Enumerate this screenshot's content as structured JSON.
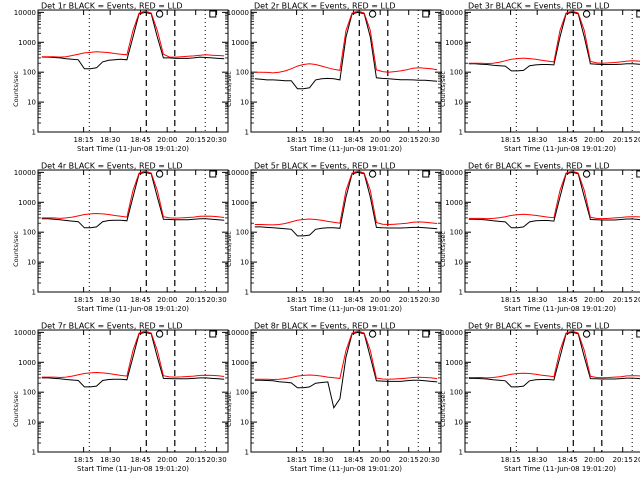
{
  "chart_data": {
    "type": "line",
    "layout": "3x3 grid",
    "y_scale": "log",
    "ylim": [
      1,
      12000
    ],
    "ytick_labels": [
      "1",
      "10",
      "100",
      "1000",
      "10000"
    ],
    "xtick_labels": [
      "18:15",
      "18:30",
      "18:45",
      "20:00",
      "20:15",
      "20:30"
    ],
    "xlabel": "Start Time (11-Jun-08 19:01:20)",
    "ylabel": "Counts/sec",
    "panels": [
      {
        "title": "Det 1r BLACK = Events, RED = LLD",
        "series": [
          {
            "name": "BLACK = Events",
            "color": "#000000",
            "values": [
              320,
              320,
              310,
              300,
              280,
              270,
              260,
              130,
              130,
              140,
              220,
              250,
              260,
              270,
              260,
              1500,
              9000,
              10000,
              9000,
              1500,
              300,
              300,
              290,
              290,
              290,
              300,
              320,
              310,
              300,
              290,
              280
            ]
          },
          {
            "name": "RED = LLD",
            "color": "#ff0000",
            "values": [
              330,
              330,
              330,
              320,
              330,
              360,
              400,
              440,
              460,
              480,
              470,
              450,
              420,
              400,
              380,
              2500,
              9500,
              11000,
              9500,
              2500,
              400,
              320,
              320,
              330,
              340,
              350,
              370,
              380,
              370,
              360,
              350
            ]
          }
        ]
      },
      {
        "title": "Det 2r BLACK = Events, RED = LLD",
        "series": [
          {
            "name": "BLACK = Events",
            "color": "#000000",
            "values": [
              60,
              58,
              55,
              55,
              54,
              52,
              52,
              28,
              28,
              30,
              55,
              60,
              62,
              60,
              55,
              1500,
              9000,
              10000,
              9000,
              1500,
              65,
              62,
              60,
              58,
              56,
              56,
              55,
              54,
              54,
              52,
              50
            ]
          },
          {
            "name": "RED = LLD",
            "color": "#ff0000",
            "values": [
              100,
              100,
              98,
              95,
              100,
              110,
              130,
              160,
              180,
              190,
              180,
              160,
              140,
              125,
              115,
              2500,
              9500,
              11000,
              9500,
              2500,
              120,
              105,
              100,
              105,
              110,
              120,
              135,
              140,
              135,
              130,
              120
            ]
          }
        ]
      },
      {
        "title": "Det 3r BLACK = Events, RED = LLD",
        "series": [
          {
            "name": "BLACK = Events",
            "color": "#000000",
            "values": [
              190,
              190,
              185,
              180,
              170,
              165,
              160,
              110,
              110,
              115,
              165,
              175,
              180,
              180,
              175,
              1500,
              9000,
              10000,
              9000,
              1500,
              190,
              185,
              180,
              180,
              180,
              185,
              190,
              190,
              185,
              180,
              175
            ]
          },
          {
            "name": "RED = LLD",
            "color": "#ff0000",
            "values": [
              200,
              200,
              200,
              195,
              200,
              215,
              240,
              270,
              285,
              295,
              285,
              270,
              250,
              235,
              220,
              2500,
              9500,
              11000,
              9500,
              2500,
              230,
              205,
              200,
              205,
              210,
              220,
              235,
              240,
              235,
              225,
              215
            ]
          }
        ]
      },
      {
        "title": "Det 4r BLACK = Events, RED = LLD",
        "series": [
          {
            "name": "BLACK = Events",
            "color": "#000000",
            "values": [
              280,
              280,
              270,
              260,
              245,
              235,
              225,
              140,
              140,
              150,
              225,
              245,
              250,
              250,
              240,
              1500,
              9000,
              10000,
              9000,
              1500,
              270,
              265,
              260,
              260,
              260,
              270,
              280,
              280,
              270,
              260,
              250
            ]
          },
          {
            "name": "RED = LLD",
            "color": "#ff0000",
            "values": [
              300,
              300,
              300,
              290,
              300,
              320,
              350,
              390,
              410,
              420,
              410,
              390,
              360,
              340,
              320,
              2500,
              9500,
              11000,
              9500,
              2500,
              330,
              300,
              295,
              300,
              310,
              320,
              340,
              345,
              340,
              330,
              310
            ]
          }
        ]
      },
      {
        "title": "Det 5r BLACK = Events, RED = LLD",
        "series": [
          {
            "name": "BLACK = Events",
            "color": "#000000",
            "values": [
              150,
              150,
              145,
              140,
              135,
              130,
              125,
              75,
              75,
              80,
              125,
              135,
              140,
              140,
              135,
              1500,
              9000,
              10000,
              9000,
              1500,
              145,
              140,
              138,
              138,
              138,
              140,
              145,
              145,
              140,
              135,
              130
            ]
          },
          {
            "name": "RED = LLD",
            "color": "#ff0000",
            "values": [
              180,
              180,
              178,
              175,
              180,
              195,
              220,
              250,
              265,
              275,
              265,
              250,
              230,
              215,
              200,
              2500,
              9500,
              11000,
              9500,
              2500,
              210,
              185,
              180,
              185,
              190,
              200,
              215,
              220,
              215,
              205,
              195
            ]
          }
        ]
      },
      {
        "title": "Det 6r BLACK = Events, RED = LLD",
        "series": [
          {
            "name": "BLACK = Events",
            "color": "#000000",
            "values": [
              270,
              270,
              265,
              255,
              240,
              230,
              220,
              140,
              140,
              150,
              220,
              240,
              245,
              245,
              235,
              1500,
              9000,
              10000,
              9000,
              1500,
              265,
              260,
              255,
              255,
              255,
              265,
              275,
              275,
              265,
              255,
              245
            ]
          },
          {
            "name": "RED = LLD",
            "color": "#ff0000",
            "values": [
              290,
              290,
              290,
              280,
              290,
              305,
              330,
              365,
              385,
              395,
              385,
              365,
              340,
              320,
              305,
              2500,
              9500,
              11000,
              9500,
              2500,
              315,
              290,
              285,
              290,
              300,
              310,
              325,
              330,
              325,
              315,
              300
            ]
          }
        ]
      },
      {
        "title": "Det 7r BLACK = Events, RED = LLD",
        "series": [
          {
            "name": "BLACK = Events",
            "color": "#000000",
            "values": [
              300,
              300,
              290,
              280,
              265,
              255,
              245,
              150,
              150,
              160,
              245,
              265,
              270,
              270,
              260,
              1500,
              9000,
              10000,
              9000,
              1500,
              290,
              285,
              280,
              280,
              280,
              290,
              300,
              300,
              290,
              280,
              270
            ]
          },
          {
            "name": "RED = LLD",
            "color": "#ff0000",
            "values": [
              320,
              320,
              320,
              310,
              320,
              345,
              380,
              420,
              440,
              455,
              440,
              420,
              390,
              365,
              345,
              2500,
              9500,
              11000,
              9500,
              2500,
              355,
              325,
              320,
              325,
              335,
              345,
              365,
              370,
              365,
              355,
              335
            ]
          }
        ]
      },
      {
        "title": "Det 8r BLACK = Events, RED = LLD",
        "series": [
          {
            "name": "BLACK = Events",
            "color": "#000000",
            "values": [
              250,
              250,
              245,
              240,
              225,
              215,
              205,
              140,
              140,
              150,
              200,
              210,
              220,
              30,
              60,
              1500,
              9000,
              10000,
              9000,
              1500,
              240,
              235,
              230,
              230,
              230,
              240,
              250,
              250,
              240,
              230,
              220
            ]
          },
          {
            "name": "RED = LLD",
            "color": "#ff0000",
            "values": [
              270,
              270,
              270,
              265,
              270,
              285,
              310,
              345,
              365,
              375,
              365,
              345,
              320,
              305,
              290,
              2500,
              9500,
              11000,
              9500,
              2500,
              295,
              275,
              270,
              275,
              285,
              295,
              310,
              315,
              310,
              300,
              285
            ]
          }
        ]
      },
      {
        "title": "Det 9r BLACK = Events, RED = LLD",
        "series": [
          {
            "name": "BLACK = Events",
            "color": "#000000",
            "values": [
              290,
              290,
              285,
              275,
              260,
              250,
              240,
              150,
              150,
              160,
              240,
              260,
              265,
              265,
              255,
              1500,
              9000,
              10000,
              9000,
              1500,
              285,
              280,
              275,
              275,
              275,
              285,
              295,
              295,
              285,
              275,
              265
            ]
          },
          {
            "name": "RED = LLD",
            "color": "#ff0000",
            "values": [
              310,
              310,
              310,
              300,
              310,
              330,
              360,
              400,
              420,
              430,
              420,
              400,
              370,
              350,
              330,
              2500,
              9500,
              11000,
              9500,
              2500,
              340,
              310,
              305,
              310,
              320,
              330,
              350,
              355,
              350,
              340,
              320
            ]
          }
        ]
      }
    ]
  }
}
